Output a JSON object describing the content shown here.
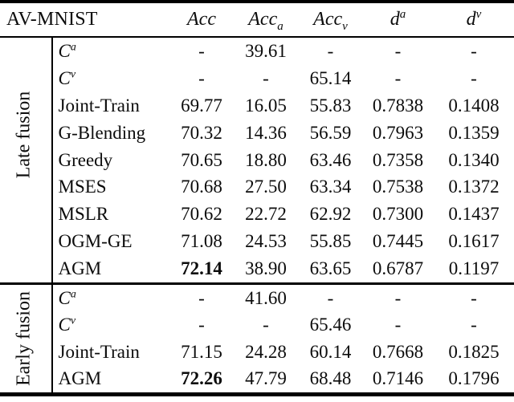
{
  "table": {
    "title": "AV-MNIST",
    "columns": [
      {
        "base": "Acc"
      },
      {
        "base": "Acc",
        "sub": "a"
      },
      {
        "base": "Acc",
        "sub": "v"
      },
      {
        "base": "d",
        "sup": "a"
      },
      {
        "base": "d",
        "sup": "v"
      }
    ],
    "sections": [
      {
        "label": "Late fusion",
        "rows": [
          {
            "label": "C",
            "label_sup": "a",
            "cells": [
              "-",
              "39.61",
              "-",
              "-",
              "-"
            ]
          },
          {
            "label": "C",
            "label_sup": "v",
            "cells": [
              "-",
              "-",
              "65.14",
              "-",
              "-"
            ]
          },
          {
            "label": "Joint-Train",
            "cells": [
              "69.77",
              "16.05",
              "55.83",
              "0.7838",
              "0.1408"
            ]
          },
          {
            "label": "G-Blending",
            "cells": [
              "70.32",
              "14.36",
              "56.59",
              "0.7963",
              "0.1359"
            ]
          },
          {
            "label": "Greedy",
            "cells": [
              "70.65",
              "18.80",
              "63.46",
              "0.7358",
              "0.1340"
            ]
          },
          {
            "label": "MSES",
            "cells": [
              "70.68",
              "27.50",
              "63.34",
              "0.7538",
              "0.1372"
            ]
          },
          {
            "label": "MSLR",
            "cells": [
              "70.62",
              "22.72",
              "62.92",
              "0.7300",
              "0.1437"
            ]
          },
          {
            "label": "OGM-GE",
            "cells": [
              "71.08",
              "24.53",
              "55.85",
              "0.7445",
              "0.1617"
            ]
          },
          {
            "label": "AGM",
            "cells": [
              "72.14",
              "38.90",
              "63.65",
              "0.6787",
              "0.1197"
            ]
          }
        ]
      },
      {
        "label": "Early fusion",
        "rows": [
          {
            "label": "C",
            "label_sup": "a",
            "cells": [
              "-",
              "41.60",
              "-",
              "-",
              "-"
            ]
          },
          {
            "label": "C",
            "label_sup": "v",
            "cells": [
              "-",
              "-",
              "65.46",
              "-",
              "-"
            ]
          },
          {
            "label": "Joint-Train",
            "cells": [
              "71.15",
              "24.28",
              "60.14",
              "0.7668",
              "0.1825"
            ]
          },
          {
            "label": "AGM",
            "cells": [
              "72.26",
              "47.79",
              "68.48",
              "0.7146",
              "0.1796"
            ]
          }
        ]
      }
    ]
  }
}
